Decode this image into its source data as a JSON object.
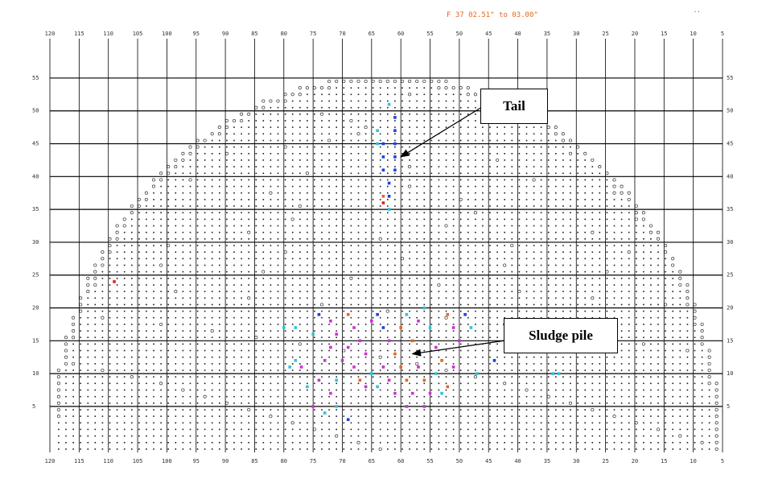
{
  "header": "F 37 02.51\" to 03.00\"",
  "corner_mark": "..",
  "chart_data": {
    "type": "scatter",
    "x_ticks": [
      "120",
      "115",
      "110",
      "105",
      "100",
      "95",
      "90",
      "85",
      "80",
      "75",
      "70",
      "65",
      "60",
      "55",
      "50",
      "45",
      "40",
      "35",
      "30",
      "25",
      "20",
      "15",
      "10",
      "5"
    ],
    "y_ticks": [
      "55",
      "50",
      "45",
      "40",
      "35",
      "30",
      "25",
      "20",
      "15",
      "10",
      "5"
    ],
    "xlim": [
      120,
      5
    ],
    "ylim": [
      -2,
      61
    ],
    "dome_radius": 57.5,
    "dome_center_x": 62.5,
    "annotations": [
      {
        "text": "Tail",
        "target": [
          60,
          43
        ]
      },
      {
        "text": "Sludge pile",
        "target": [
          58,
          13
        ]
      }
    ],
    "colors": {
      "grid": "#000000",
      "dot": "#1a1a1a",
      "ring": "#333333",
      "blue": "#1f3fe0",
      "cyan": "#2ec4d8",
      "magenta": "#d12ed6",
      "orange": "#e8661a",
      "red": "#e02020"
    },
    "marks": [
      {
        "series": "blue",
        "x": 61,
        "y": 49
      },
      {
        "series": "blue",
        "x": 61,
        "y": 47
      },
      {
        "series": "blue",
        "x": 61,
        "y": 45
      },
      {
        "series": "blue",
        "x": 61,
        "y": 43
      },
      {
        "series": "blue",
        "x": 61,
        "y": 41
      },
      {
        "series": "blue",
        "x": 63,
        "y": 45
      },
      {
        "series": "blue",
        "x": 63,
        "y": 43
      },
      {
        "series": "blue",
        "x": 63,
        "y": 41
      },
      {
        "series": "blue",
        "x": 62,
        "y": 39
      },
      {
        "series": "blue",
        "x": 62,
        "y": 37
      },
      {
        "series": "cyan",
        "x": 64,
        "y": 47
      },
      {
        "series": "cyan",
        "x": 64,
        "y": 45
      },
      {
        "series": "cyan",
        "x": 62,
        "y": 51
      },
      {
        "series": "cyan",
        "x": 62,
        "y": 35
      },
      {
        "series": "red",
        "x": 63,
        "y": 36
      },
      {
        "series": "orange",
        "x": 63,
        "y": 37
      },
      {
        "series": "red",
        "x": 109,
        "y": 24
      },
      {
        "series": "cyan",
        "x": 80,
        "y": 17
      },
      {
        "series": "cyan",
        "x": 78,
        "y": 17
      },
      {
        "series": "cyan",
        "x": 75,
        "y": 16
      },
      {
        "series": "blue",
        "x": 74,
        "y": 19
      },
      {
        "series": "magenta",
        "x": 72,
        "y": 18
      },
      {
        "series": "magenta",
        "x": 71,
        "y": 16
      },
      {
        "series": "orange",
        "x": 69,
        "y": 19
      },
      {
        "series": "magenta",
        "x": 68,
        "y": 17
      },
      {
        "series": "magenta",
        "x": 67,
        "y": 15
      },
      {
        "series": "magenta",
        "x": 66,
        "y": 13
      },
      {
        "series": "magenta",
        "x": 65,
        "y": 18
      },
      {
        "series": "blue",
        "x": 64,
        "y": 19
      },
      {
        "series": "blue",
        "x": 63,
        "y": 17
      },
      {
        "series": "magenta",
        "x": 62,
        "y": 15
      },
      {
        "series": "orange",
        "x": 61,
        "y": 13
      },
      {
        "series": "orange",
        "x": 60,
        "y": 17
      },
      {
        "series": "cyan",
        "x": 59,
        "y": 19
      },
      {
        "series": "orange",
        "x": 58,
        "y": 15
      },
      {
        "series": "magenta",
        "x": 57,
        "y": 18
      },
      {
        "series": "cyan",
        "x": 56,
        "y": 20
      },
      {
        "series": "cyan",
        "x": 55,
        "y": 17
      },
      {
        "series": "magenta",
        "x": 54,
        "y": 14
      },
      {
        "series": "orange",
        "x": 53,
        "y": 12
      },
      {
        "series": "orange",
        "x": 52,
        "y": 19
      },
      {
        "series": "magenta",
        "x": 51,
        "y": 17
      },
      {
        "series": "magenta",
        "x": 50,
        "y": 15
      },
      {
        "series": "blue",
        "x": 49,
        "y": 19
      },
      {
        "series": "cyan",
        "x": 48,
        "y": 17
      },
      {
        "series": "magenta",
        "x": 72,
        "y": 14
      },
      {
        "series": "magenta",
        "x": 70,
        "y": 12
      },
      {
        "series": "magenta",
        "x": 69,
        "y": 14
      },
      {
        "series": "magenta",
        "x": 68,
        "y": 11
      },
      {
        "series": "orange",
        "x": 67,
        "y": 9
      },
      {
        "series": "magenta",
        "x": 66,
        "y": 8
      },
      {
        "series": "cyan",
        "x": 65,
        "y": 10
      },
      {
        "series": "cyan",
        "x": 64,
        "y": 8
      },
      {
        "series": "magenta",
        "x": 63,
        "y": 11
      },
      {
        "series": "magenta",
        "x": 62,
        "y": 9
      },
      {
        "series": "magenta",
        "x": 61,
        "y": 7
      },
      {
        "series": "orange",
        "x": 60,
        "y": 11
      },
      {
        "series": "orange",
        "x": 59,
        "y": 9
      },
      {
        "series": "magenta",
        "x": 58,
        "y": 7
      },
      {
        "series": "magenta",
        "x": 57,
        "y": 11
      },
      {
        "series": "orange",
        "x": 56,
        "y": 9
      },
      {
        "series": "magenta",
        "x": 55,
        "y": 7
      },
      {
        "series": "cyan",
        "x": 54,
        "y": 10
      },
      {
        "series": "orange",
        "x": 52,
        "y": 8
      },
      {
        "series": "magenta",
        "x": 51,
        "y": 11
      },
      {
        "series": "magenta",
        "x": 77,
        "y": 11
      },
      {
        "series": "cyan",
        "x": 78,
        "y": 12
      },
      {
        "series": "cyan",
        "x": 79,
        "y": 11
      },
      {
        "series": "magenta",
        "x": 74,
        "y": 9
      },
      {
        "series": "magenta",
        "x": 73,
        "y": 12
      },
      {
        "series": "magenta",
        "x": 72,
        "y": 7
      },
      {
        "series": "cyan",
        "x": 71,
        "y": 9
      },
      {
        "series": "cyan",
        "x": 76,
        "y": 8
      },
      {
        "series": "magenta",
        "x": 75,
        "y": 5
      },
      {
        "series": "cyan",
        "x": 73,
        "y": 4
      },
      {
        "series": "cyan",
        "x": 71,
        "y": 5
      },
      {
        "series": "blue",
        "x": 69,
        "y": 3
      },
      {
        "series": "magenta",
        "x": 59,
        "y": 5
      },
      {
        "series": "magenta",
        "x": 56,
        "y": 5
      },
      {
        "series": "cyan",
        "x": 53,
        "y": 7
      },
      {
        "series": "blue",
        "x": 44,
        "y": 12
      },
      {
        "series": "cyan",
        "x": 34,
        "y": 10
      },
      {
        "series": "cyan",
        "x": 33,
        "y": 10
      },
      {
        "series": "cyan",
        "x": 47,
        "y": 10
      }
    ]
  }
}
